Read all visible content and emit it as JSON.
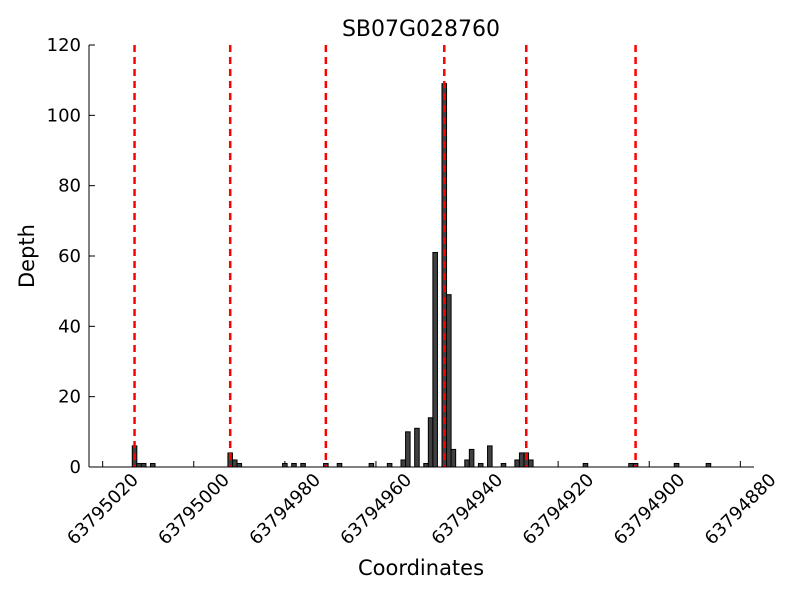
{
  "chart_data": {
    "type": "bar",
    "title": "SB07G028760",
    "xlabel": "Coordinates",
    "ylabel": "Depth",
    "x": [
      63795013,
      63795012,
      63795011,
      63795009,
      63794992,
      63794991,
      63794990,
      63794980,
      63794978,
      63794976,
      63794971,
      63794968,
      63794961,
      63794957,
      63794954,
      63794953,
      63794951,
      63794949,
      63794948,
      63794947,
      63794945,
      63794944,
      63794943,
      63794940,
      63794939,
      63794937,
      63794935,
      63794932,
      63794929,
      63794928,
      63794927,
      63794926,
      63794914,
      63794904,
      63794903,
      63794894,
      63794887
    ],
    "values": [
      6,
      1,
      1,
      1,
      4,
      2,
      1,
      1,
      1,
      1,
      1,
      1,
      1,
      1,
      2,
      10,
      11,
      1,
      14,
      61,
      109,
      49,
      5,
      2,
      5,
      1,
      6,
      1,
      2,
      4,
      4,
      2,
      1,
      1,
      1,
      1,
      1
    ],
    "color": "#404040",
    "vlines": [
      63795013,
      63794992,
      63794971,
      63794945,
      63794927,
      63794903
    ],
    "vline_color": "#ff0000",
    "xlim": [
      63795023,
      63794877
    ],
    "xticks": [
      63795020,
      63795000,
      63794980,
      63794960,
      63794940,
      63794920,
      63794900,
      63794880
    ],
    "ylim": [
      0,
      120
    ],
    "yticks": [
      0,
      20,
      40,
      60,
      80,
      100,
      120
    ]
  }
}
